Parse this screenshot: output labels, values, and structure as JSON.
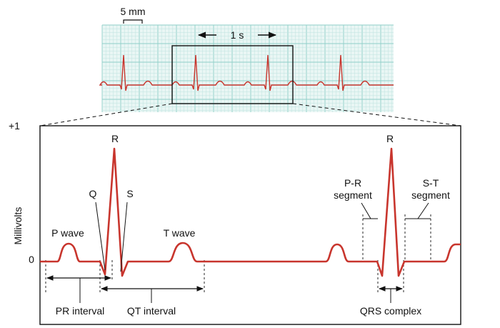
{
  "strip": {
    "scale_label": "5 mm",
    "time_label": "1 s"
  },
  "axis": {
    "ylabel": "Millivolts",
    "top_tick": "+1",
    "zero_tick": "0"
  },
  "waves": {
    "p_wave": "P wave",
    "q": "Q",
    "r1": "R",
    "s": "S",
    "t_wave": "T wave",
    "r2": "R"
  },
  "intervals": {
    "pr_interval": "PR interval",
    "qt_interval": "QT interval",
    "qrs_complex": "QRS complex",
    "pr_segment_line1": "P-R",
    "pr_segment_line2": "segment",
    "st_segment_line1": "S-T",
    "st_segment_line2": "segment"
  },
  "colors": {
    "trace": "#c8352d",
    "grid_minor": "#bfe4e0",
    "grid_major": "#8fcfc8",
    "strip_bg": "#e9f6f4"
  }
}
